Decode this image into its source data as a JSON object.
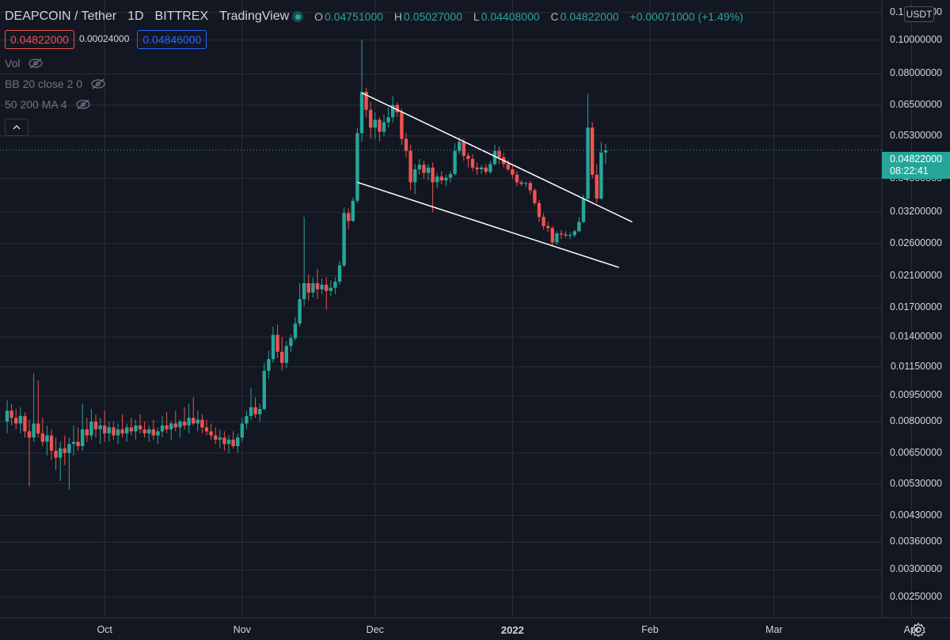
{
  "header": {
    "symbol": "DEAPCOIN / Tether",
    "interval": "1D",
    "exchange": "BITTREX",
    "source": "TradingView",
    "ohlc": {
      "o_label": "O",
      "o": "0.04751000",
      "h_label": "H",
      "h": "0.05027000",
      "l_label": "L",
      "l": "0.04408000",
      "c_label": "C",
      "c": "0.04822000",
      "change": "+0.00071000 (+1.49%)"
    }
  },
  "quote": {
    "bid": "0.04822000",
    "spread": "0.00024000",
    "ask": "0.04846000"
  },
  "indicators": [
    {
      "label": "Vol",
      "icon": "eye-crossed-icon"
    },
    {
      "label": "BB 20 close 2 0",
      "icon": "eye-crossed-icon"
    },
    {
      "label": "50 200 MA 4",
      "icon": "eye-crossed-icon"
    }
  ],
  "price_axis": {
    "currency": "USDT",
    "last_price": "0.04822000",
    "countdown": "08:22:41",
    "ticks": [
      "0.12000000",
      "0.10000000",
      "0.08000000",
      "0.06500000",
      "0.05300000",
      "0.04000000",
      "0.03200000",
      "0.02600000",
      "0.02100000",
      "0.01700000",
      "0.01400000",
      "0.01150000",
      "0.00950000",
      "0.00800000",
      "0.00650000",
      "0.00530000",
      "0.00430000",
      "0.00360000",
      "0.00300000",
      "0.00250000"
    ]
  },
  "time_axis": {
    "ticks": [
      {
        "label": "Oct",
        "date": "2021-10-01"
      },
      {
        "label": "Nov",
        "date": "2021-11-01"
      },
      {
        "label": "Dec",
        "date": "2021-12-01"
      },
      {
        "label": "2022",
        "date": "2022-01-01",
        "bold": true
      },
      {
        "label": "Feb",
        "date": "2022-02-01"
      },
      {
        "label": "Mar",
        "date": "2022-03-01"
      },
      {
        "label": "Apr",
        "date": "2022-04-01"
      }
    ]
  },
  "colors": {
    "up": "#26a69a",
    "down": "#ef5350",
    "background": "#131722",
    "grid": "#2a2e39",
    "trendline": "#ffffff"
  },
  "chart_data": {
    "type": "candlestick",
    "scale": "log",
    "ylim": [
      0.0023,
      0.125
    ],
    "xlim": [
      "2021-09-09",
      "2022-04-09"
    ],
    "ohlc": [
      [
        "2021-09-09",
        0.008,
        0.0092,
        0.0074,
        0.0086
      ],
      [
        "2021-09-10",
        0.0086,
        0.009,
        0.0078,
        0.0082
      ],
      [
        "2021-09-11",
        0.0082,
        0.0087,
        0.0076,
        0.0079
      ],
      [
        "2021-09-12",
        0.0079,
        0.0088,
        0.0074,
        0.0083
      ],
      [
        "2021-09-13",
        0.0083,
        0.0085,
        0.0072,
        0.0075
      ],
      [
        "2021-09-14",
        0.0075,
        0.0081,
        0.0052,
        0.0072
      ],
      [
        "2021-09-15",
        0.0072,
        0.011,
        0.007,
        0.0079
      ],
      [
        "2021-09-16",
        0.0079,
        0.0105,
        0.0072,
        0.0074
      ],
      [
        "2021-09-17",
        0.0074,
        0.0082,
        0.0068,
        0.007
      ],
      [
        "2021-09-18",
        0.007,
        0.0078,
        0.0064,
        0.0073
      ],
      [
        "2021-09-19",
        0.0073,
        0.0076,
        0.0062,
        0.0066
      ],
      [
        "2021-09-20",
        0.0066,
        0.0072,
        0.0058,
        0.0063
      ],
      [
        "2021-09-21",
        0.0063,
        0.007,
        0.0054,
        0.0067
      ],
      [
        "2021-09-22",
        0.0067,
        0.0073,
        0.006,
        0.0065
      ],
      [
        "2021-09-23",
        0.0065,
        0.0072,
        0.0051,
        0.0069
      ],
      [
        "2021-09-24",
        0.0069,
        0.0078,
        0.0064,
        0.007
      ],
      [
        "2021-09-25",
        0.007,
        0.0077,
        0.0066,
        0.0068
      ],
      [
        "2021-09-26",
        0.0068,
        0.009,
        0.0066,
        0.0076
      ],
      [
        "2021-09-27",
        0.0076,
        0.0082,
        0.007,
        0.0073
      ],
      [
        "2021-09-28",
        0.0073,
        0.0087,
        0.0071,
        0.008
      ],
      [
        "2021-09-29",
        0.008,
        0.0084,
        0.0072,
        0.0076
      ],
      [
        "2021-09-30",
        0.0076,
        0.0082,
        0.0069,
        0.0078
      ],
      [
        "2021-10-01",
        0.0078,
        0.0086,
        0.007,
        0.0074
      ],
      [
        "2021-10-02",
        0.0074,
        0.008,
        0.007,
        0.0077
      ],
      [
        "2021-10-03",
        0.0077,
        0.008,
        0.0071,
        0.0073
      ],
      [
        "2021-10-04",
        0.0073,
        0.0079,
        0.0069,
        0.0076
      ],
      [
        "2021-10-05",
        0.0076,
        0.0084,
        0.0072,
        0.0074
      ],
      [
        "2021-10-06",
        0.0074,
        0.0079,
        0.007,
        0.0077
      ],
      [
        "2021-10-07",
        0.0077,
        0.0082,
        0.0073,
        0.0075
      ],
      [
        "2021-10-08",
        0.0075,
        0.0081,
        0.0071,
        0.0078
      ],
      [
        "2021-10-09",
        0.0078,
        0.0084,
        0.0074,
        0.0076
      ],
      [
        "2021-10-10",
        0.0076,
        0.008,
        0.0072,
        0.0074
      ],
      [
        "2021-10-11",
        0.0074,
        0.0078,
        0.007,
        0.0076
      ],
      [
        "2021-10-12",
        0.0076,
        0.0081,
        0.0071,
        0.0073
      ],
      [
        "2021-10-13",
        0.0073,
        0.0077,
        0.0069,
        0.0075
      ],
      [
        "2021-10-14",
        0.0075,
        0.0083,
        0.0072,
        0.0078
      ],
      [
        "2021-10-15",
        0.0078,
        0.0085,
        0.0074,
        0.0076
      ],
      [
        "2021-10-16",
        0.0076,
        0.008,
        0.0071,
        0.0079
      ],
      [
        "2021-10-17",
        0.0079,
        0.0086,
        0.0075,
        0.0077
      ],
      [
        "2021-10-18",
        0.0077,
        0.0081,
        0.0072,
        0.008
      ],
      [
        "2021-10-19",
        0.008,
        0.0088,
        0.0076,
        0.0078
      ],
      [
        "2021-10-20",
        0.0078,
        0.009,
        0.0074,
        0.0082
      ],
      [
        "2021-10-21",
        0.0082,
        0.0094,
        0.0078,
        0.0079
      ],
      [
        "2021-10-22",
        0.0079,
        0.0086,
        0.0075,
        0.0081
      ],
      [
        "2021-10-23",
        0.0081,
        0.0084,
        0.0074,
        0.0077
      ],
      [
        "2021-10-24",
        0.0077,
        0.0081,
        0.0073,
        0.0075
      ],
      [
        "2021-10-25",
        0.0075,
        0.0079,
        0.0071,
        0.0073
      ],
      [
        "2021-10-26",
        0.0073,
        0.0077,
        0.0069,
        0.0071
      ],
      [
        "2021-10-27",
        0.0071,
        0.0076,
        0.0067,
        0.0072
      ],
      [
        "2021-10-28",
        0.0072,
        0.0075,
        0.0066,
        0.0069
      ],
      [
        "2021-10-29",
        0.0069,
        0.0073,
        0.0065,
        0.0071
      ],
      [
        "2021-10-30",
        0.0071,
        0.0075,
        0.0067,
        0.0068
      ],
      [
        "2021-10-31",
        0.0068,
        0.0074,
        0.0065,
        0.0072
      ],
      [
        "2021-11-01",
        0.0072,
        0.0082,
        0.007,
        0.0079
      ],
      [
        "2021-11-02",
        0.0079,
        0.0086,
        0.0076,
        0.0083
      ],
      [
        "2021-11-03",
        0.0083,
        0.01,
        0.0081,
        0.0088
      ],
      [
        "2021-11-04",
        0.0088,
        0.0094,
        0.0082,
        0.0084
      ],
      [
        "2021-11-05",
        0.0084,
        0.009,
        0.008,
        0.0087
      ],
      [
        "2021-11-06",
        0.0087,
        0.0118,
        0.0086,
        0.0112
      ],
      [
        "2021-11-07",
        0.0112,
        0.0128,
        0.0106,
        0.0121
      ],
      [
        "2021-11-08",
        0.0121,
        0.015,
        0.0118,
        0.0142
      ],
      [
        "2021-11-09",
        0.0142,
        0.0152,
        0.0122,
        0.0127
      ],
      [
        "2021-11-10",
        0.0127,
        0.014,
        0.0112,
        0.0118
      ],
      [
        "2021-11-11",
        0.0118,
        0.0136,
        0.0114,
        0.0132
      ],
      [
        "2021-11-12",
        0.0132,
        0.0142,
        0.0127,
        0.0139
      ],
      [
        "2021-11-13",
        0.0139,
        0.016,
        0.0137,
        0.0153
      ],
      [
        "2021-11-14",
        0.0153,
        0.02,
        0.015,
        0.018
      ],
      [
        "2021-11-15",
        0.018,
        0.031,
        0.0172,
        0.02
      ],
      [
        "2021-11-16",
        0.02,
        0.0212,
        0.0178,
        0.0188
      ],
      [
        "2021-11-17",
        0.0188,
        0.0208,
        0.0182,
        0.02
      ],
      [
        "2021-11-18",
        0.02,
        0.022,
        0.018,
        0.0192
      ],
      [
        "2021-11-19",
        0.0192,
        0.0206,
        0.0186,
        0.0198
      ],
      [
        "2021-11-20",
        0.0198,
        0.0208,
        0.0168,
        0.019
      ],
      [
        "2021-11-21",
        0.019,
        0.0204,
        0.0184,
        0.0194
      ],
      [
        "2021-11-22",
        0.0194,
        0.0208,
        0.0186,
        0.0202
      ],
      [
        "2021-11-23",
        0.0202,
        0.0232,
        0.0198,
        0.0225
      ],
      [
        "2021-11-24",
        0.0225,
        0.033,
        0.0222,
        0.0318
      ],
      [
        "2021-11-25",
        0.0318,
        0.0328,
        0.0286,
        0.0302
      ],
      [
        "2021-11-26",
        0.0302,
        0.0352,
        0.03,
        0.0345
      ],
      [
        "2021-11-27",
        0.0345,
        0.056,
        0.034,
        0.054
      ],
      [
        "2021-11-28",
        0.054,
        0.1,
        0.051,
        0.071
      ],
      [
        "2021-11-29",
        0.071,
        0.073,
        0.06,
        0.063
      ],
      [
        "2021-11-30",
        0.063,
        0.0665,
        0.052,
        0.056
      ],
      [
        "2021-12-01",
        0.056,
        0.062,
        0.052,
        0.059
      ],
      [
        "2021-12-02",
        0.059,
        0.06,
        0.051,
        0.0545
      ],
      [
        "2021-12-03",
        0.0545,
        0.061,
        0.053,
        0.058
      ],
      [
        "2021-12-04",
        0.058,
        0.064,
        0.056,
        0.06
      ],
      [
        "2021-12-05",
        0.06,
        0.069,
        0.058,
        0.065
      ],
      [
        "2021-12-06",
        0.065,
        0.066,
        0.06,
        0.062
      ],
      [
        "2021-12-07",
        0.062,
        0.0635,
        0.05,
        0.052
      ],
      [
        "2021-12-08",
        0.052,
        0.054,
        0.046,
        0.048
      ],
      [
        "2021-12-09",
        0.048,
        0.05,
        0.037,
        0.039
      ],
      [
        "2021-12-10",
        0.039,
        0.044,
        0.036,
        0.0425
      ],
      [
        "2021-12-11",
        0.0425,
        0.0455,
        0.041,
        0.0438
      ],
      [
        "2021-12-12",
        0.0438,
        0.045,
        0.04,
        0.0415
      ],
      [
        "2021-12-13",
        0.0415,
        0.044,
        0.0395,
        0.043
      ],
      [
        "2021-12-14",
        0.043,
        0.0445,
        0.032,
        0.039
      ],
      [
        "2021-12-15",
        0.039,
        0.0415,
        0.0375,
        0.0405
      ],
      [
        "2021-12-16",
        0.0405,
        0.042,
        0.0385,
        0.0395
      ],
      [
        "2021-12-17",
        0.0395,
        0.041,
        0.038,
        0.0402
      ],
      [
        "2021-12-18",
        0.0402,
        0.042,
        0.039,
        0.0412
      ],
      [
        "2021-12-19",
        0.0412,
        0.0505,
        0.0408,
        0.048
      ],
      [
        "2021-12-20",
        0.048,
        0.0525,
        0.047,
        0.051
      ],
      [
        "2021-12-21",
        0.051,
        0.052,
        0.045,
        0.0465
      ],
      [
        "2021-12-22",
        0.0465,
        0.0475,
        0.043,
        0.0455
      ],
      [
        "2021-12-23",
        0.0455,
        0.047,
        0.042,
        0.043
      ],
      [
        "2021-12-24",
        0.043,
        0.0445,
        0.041,
        0.0425
      ],
      [
        "2021-12-25",
        0.0425,
        0.0438,
        0.0412,
        0.043
      ],
      [
        "2021-12-26",
        0.043,
        0.044,
        0.041,
        0.0418
      ],
      [
        "2021-12-27",
        0.0418,
        0.045,
        0.0412,
        0.044
      ],
      [
        "2021-12-28",
        0.044,
        0.05,
        0.0435,
        0.048
      ],
      [
        "2021-12-29",
        0.048,
        0.0495,
        0.044,
        0.046
      ],
      [
        "2021-12-30",
        0.046,
        0.0475,
        0.043,
        0.044
      ],
      [
        "2021-12-31",
        0.044,
        0.0452,
        0.042,
        0.0425
      ],
      [
        "2022-01-01",
        0.0425,
        0.0435,
        0.04,
        0.041
      ],
      [
        "2022-01-02",
        0.041,
        0.042,
        0.038,
        0.039
      ],
      [
        "2022-01-03",
        0.039,
        0.0395,
        0.038,
        0.0386
      ],
      [
        "2022-01-04",
        0.0386,
        0.0392,
        0.0378,
        0.0388
      ],
      [
        "2022-01-05",
        0.0388,
        0.0394,
        0.036,
        0.037
      ],
      [
        "2022-01-06",
        0.037,
        0.0375,
        0.0335,
        0.034
      ],
      [
        "2022-01-07",
        0.034,
        0.0348,
        0.03,
        0.031
      ],
      [
        "2022-01-08",
        0.031,
        0.0318,
        0.0285,
        0.0292
      ],
      [
        "2022-01-09",
        0.0292,
        0.03,
        0.028,
        0.0288
      ],
      [
        "2022-01-10",
        0.0288,
        0.0292,
        0.0255,
        0.0262
      ],
      [
        "2022-01-11",
        0.0262,
        0.0282,
        0.0258,
        0.0278
      ],
      [
        "2022-01-12",
        0.0278,
        0.0284,
        0.0268,
        0.0276
      ],
      [
        "2022-01-13",
        0.0276,
        0.0282,
        0.027,
        0.0274
      ],
      [
        "2022-01-14",
        0.0274,
        0.028,
        0.0268,
        0.0275
      ],
      [
        "2022-01-15",
        0.0275,
        0.0285,
        0.0271,
        0.0282
      ],
      [
        "2022-01-16",
        0.0282,
        0.031,
        0.028,
        0.03
      ],
      [
        "2022-01-17",
        0.03,
        0.036,
        0.0298,
        0.035
      ],
      [
        "2022-01-18",
        0.035,
        0.07,
        0.0345,
        0.056
      ],
      [
        "2022-01-19",
        0.056,
        0.058,
        0.04,
        0.041
      ],
      [
        "2022-01-20",
        0.041,
        0.044,
        0.034,
        0.035
      ],
      [
        "2022-01-21",
        0.035,
        0.051,
        0.0348,
        0.0475
      ],
      [
        "2022-01-22",
        0.0475,
        0.0503,
        0.0441,
        0.0482
      ]
    ],
    "trendlines": [
      {
        "label": "upper",
        "start": [
          "2021-11-28",
          0.0705
        ],
        "end": [
          "2022-01-28",
          0.03
        ]
      },
      {
        "label": "lower",
        "start": [
          "2021-11-27",
          0.039
        ],
        "end": [
          "2022-01-25",
          0.0222
        ]
      }
    ],
    "last_price": 0.04822
  }
}
